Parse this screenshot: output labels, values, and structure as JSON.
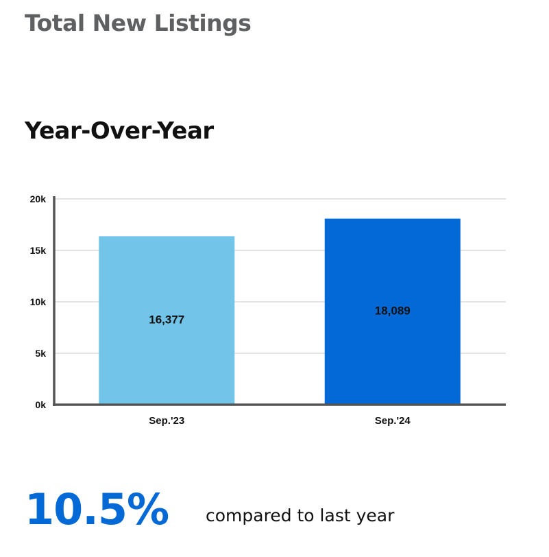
{
  "header": {
    "title": "Total New Listings"
  },
  "chart_data": {
    "type": "bar",
    "title": "Year-Over-Year",
    "xlabel": "",
    "ylabel": "",
    "categories": [
      "Sep.'23",
      "Sep.'24"
    ],
    "values": [
      16377,
      18089
    ],
    "data_labels": [
      "16,377",
      "18,089"
    ],
    "bar_colors": [
      "#72c4e8",
      "#0369d6"
    ],
    "ylim": [
      0,
      20000
    ],
    "yticks": [
      {
        "value": 0,
        "label": "0k"
      },
      {
        "value": 5000,
        "label": "5k"
      },
      {
        "value": 10000,
        "label": "10k"
      },
      {
        "value": 15000,
        "label": "15k"
      },
      {
        "value": 20000,
        "label": "20k"
      }
    ],
    "grid": true,
    "legend": "none"
  },
  "summary": {
    "change_value": "10.5%",
    "change_caption": "compared to last year",
    "accent_color": "#0369d6"
  }
}
